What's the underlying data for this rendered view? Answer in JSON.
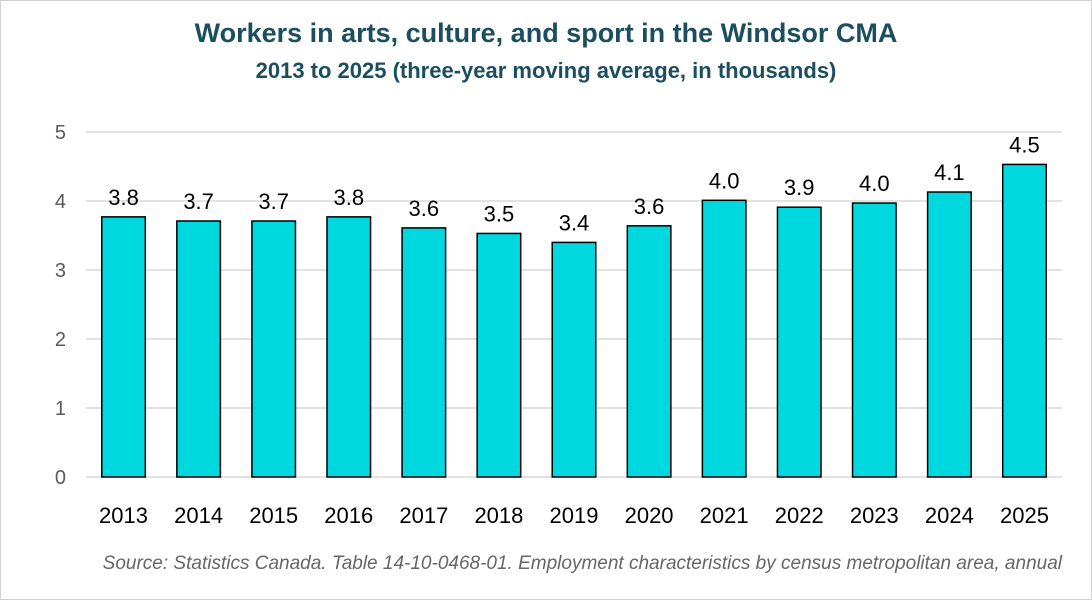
{
  "chart_data": {
    "type": "bar",
    "title": "Workers in arts, culture, and sport in the Windsor CMA",
    "subtitle": "2013 to 2025 (three-year moving average, in thousands)",
    "source": "Source: Statistics Canada. Table 14-10-0468-01. Employment characteristics by census metropolitan area, annual",
    "categories": [
      "2013",
      "2014",
      "2015",
      "2016",
      "2017",
      "2018",
      "2019",
      "2020",
      "2021",
      "2022",
      "2023",
      "2024",
      "2025"
    ],
    "values": [
      3.77,
      3.71,
      3.71,
      3.77,
      3.61,
      3.53,
      3.4,
      3.64,
      4.01,
      3.91,
      3.97,
      4.13,
      4.53
    ],
    "data_labels": [
      "3.8",
      "3.7",
      "3.7",
      "3.8",
      "3.6",
      "3.5",
      "3.4",
      "3.6",
      "4.0",
      "3.9",
      "4.0",
      "4.1",
      "4.5"
    ],
    "ylim": [
      0,
      5
    ],
    "yticks": [
      "0",
      "1",
      "2",
      "3",
      "4",
      "5"
    ],
    "xlabel": "",
    "ylabel": "",
    "grid": true,
    "bar_color": "#00d8e0",
    "bar_edge_color": "#000000"
  }
}
